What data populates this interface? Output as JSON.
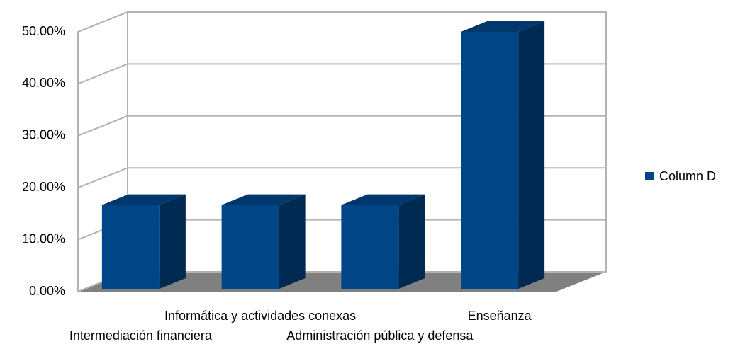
{
  "chart_data": {
    "type": "bar3d",
    "categories": [
      "Intermediación financiera",
      "Informática y actividades conexas",
      "Administración pública y defensa",
      "Enseñanza"
    ],
    "series": [
      {
        "name": "Column D",
        "color": "#004586",
        "values": [
          16.67,
          16.67,
          16.67,
          50
        ]
      }
    ],
    "ylim": [
      0,
      50
    ],
    "yticks": [
      {
        "value": 0,
        "label": "0.00%"
      },
      {
        "value": 10,
        "label": "10.00%"
      },
      {
        "value": 20,
        "label": "20.00%"
      },
      {
        "value": 30,
        "label": "30.00%"
      },
      {
        "value": 40,
        "label": "40.00%"
      },
      {
        "value": 50,
        "label": "50.00%"
      }
    ],
    "grid": true,
    "legend": "right"
  }
}
